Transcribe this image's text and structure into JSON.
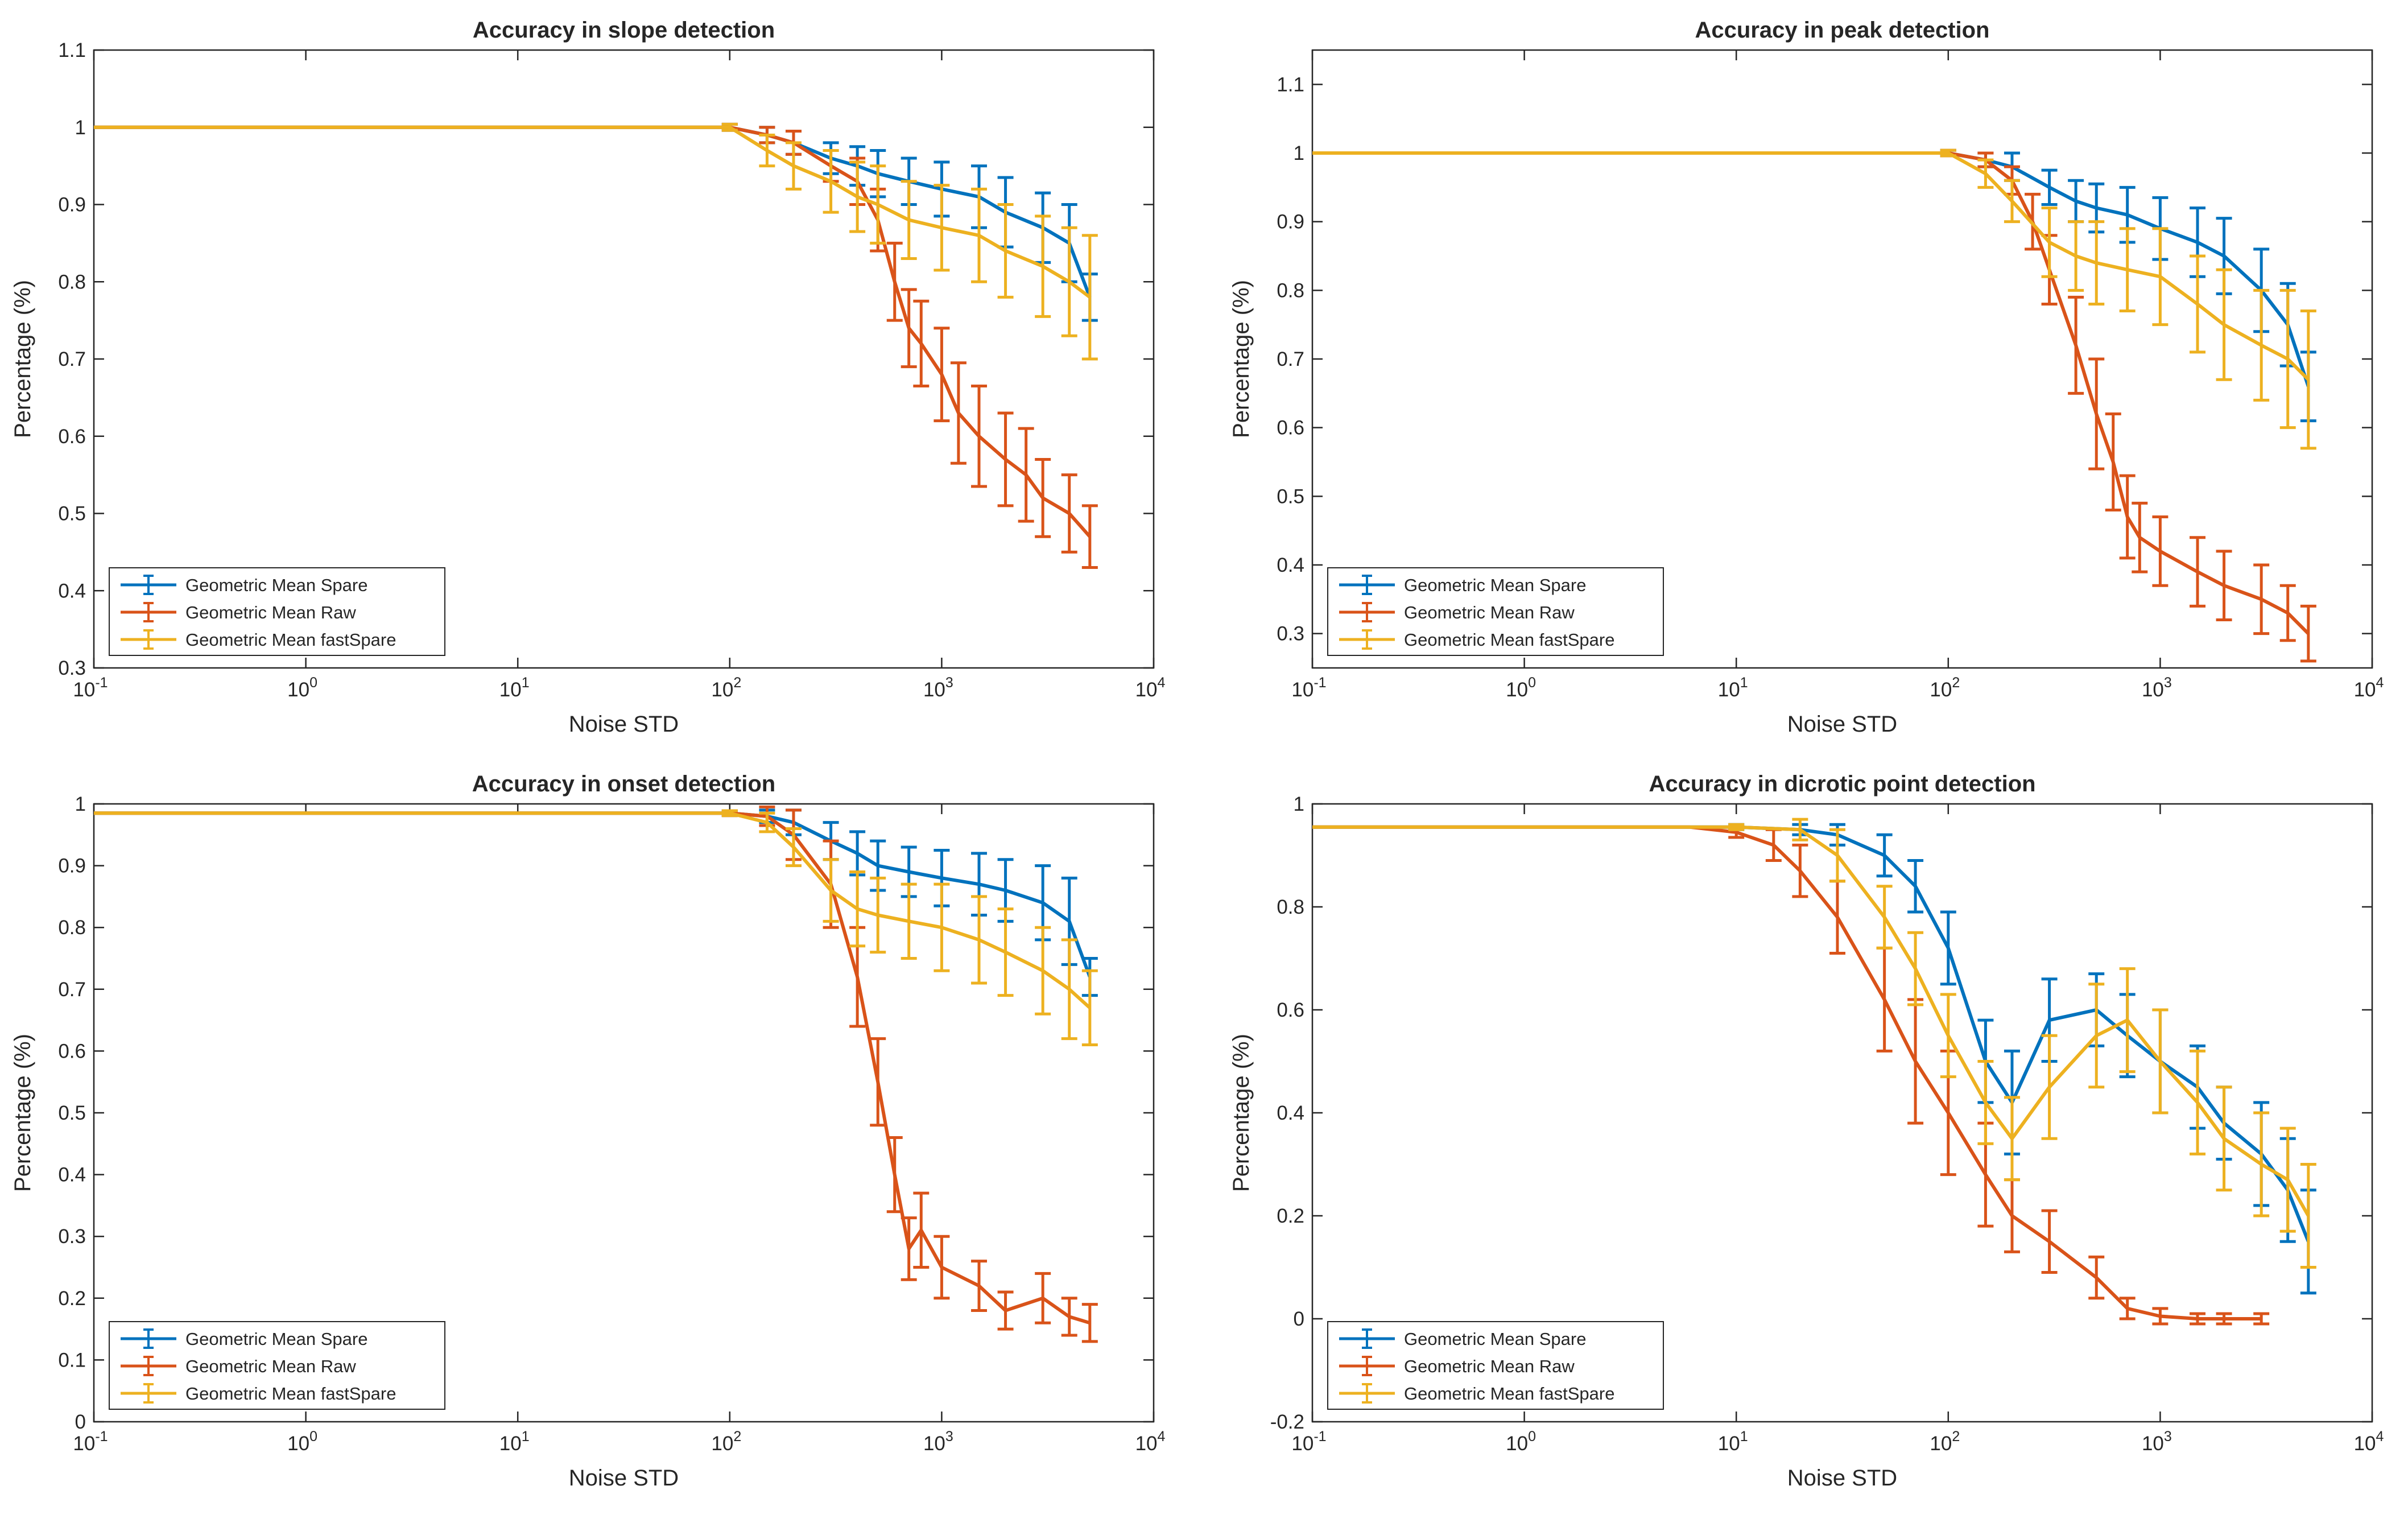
{
  "figure": {
    "xlabel": "Noise STD",
    "ylabel": "Percentage (%)",
    "series_colors": {
      "Spare": "#0072BD",
      "Raw": "#D95319",
      "fastSpare": "#EDB120"
    },
    "legend_entries": [
      "Geometric Mean Spare",
      "Geometric Mean Raw",
      "Geometric Mean fastSpare"
    ]
  },
  "chart_data": [
    {
      "type": "line",
      "title": "Accuracy in slope detection",
      "xlabel": "Noise STD",
      "ylabel": "Percentage (%)",
      "xscale": "log",
      "xlim": [
        0.1,
        10000
      ],
      "xticks": [
        {
          "base": "10",
          "exp": "-1"
        },
        {
          "base": "10",
          "exp": "0"
        },
        {
          "base": "10",
          "exp": "1"
        },
        {
          "base": "10",
          "exp": "2"
        },
        {
          "base": "10",
          "exp": "3"
        },
        {
          "base": "10",
          "exp": "4"
        }
      ],
      "ylim": [
        0.3,
        1.1
      ],
      "yticks": [
        "0.3",
        "0.4",
        "0.5",
        "0.6",
        "0.7",
        "0.8",
        "0.9",
        "1",
        "1.1"
      ],
      "legend_position": "bottom-left",
      "series": [
        {
          "name": "Geometric Mean Spare",
          "color": "#0072BD",
          "x": [
            0.1,
            60,
            100,
            150,
            200,
            300,
            400,
            500,
            700,
            1000,
            1500,
            2000,
            3000,
            4000,
            5000
          ],
          "y": [
            1.0,
            1.0,
            1.0,
            0.99,
            0.98,
            0.96,
            0.95,
            0.94,
            0.93,
            0.92,
            0.91,
            0.89,
            0.87,
            0.85,
            0.78
          ],
          "err": [
            0,
            0,
            0.004,
            0.01,
            0.015,
            0.02,
            0.025,
            0.03,
            0.03,
            0.035,
            0.04,
            0.045,
            0.045,
            0.05,
            0.03
          ]
        },
        {
          "name": "Geometric Mean Raw",
          "color": "#D95319",
          "x": [
            0.1,
            60,
            100,
            150,
            200,
            300,
            400,
            500,
            600,
            700,
            800,
            1000,
            1200,
            1500,
            2000,
            2500,
            3000,
            4000,
            5000
          ],
          "y": [
            1.0,
            1.0,
            1.0,
            0.99,
            0.98,
            0.95,
            0.93,
            0.88,
            0.8,
            0.74,
            0.72,
            0.68,
            0.63,
            0.6,
            0.57,
            0.55,
            0.52,
            0.5,
            0.47
          ],
          "err": [
            0,
            0,
            0.004,
            0.01,
            0.015,
            0.02,
            0.03,
            0.04,
            0.05,
            0.05,
            0.055,
            0.06,
            0.065,
            0.065,
            0.06,
            0.06,
            0.05,
            0.05,
            0.04
          ]
        },
        {
          "name": "Geometric Mean fastSpare",
          "color": "#EDB120",
          "x": [
            0.1,
            60,
            100,
            150,
            200,
            300,
            400,
            500,
            700,
            1000,
            1500,
            2000,
            3000,
            4000,
            5000
          ],
          "y": [
            1.0,
            1.0,
            1.0,
            0.97,
            0.95,
            0.93,
            0.91,
            0.9,
            0.88,
            0.87,
            0.86,
            0.84,
            0.82,
            0.8,
            0.78
          ],
          "err": [
            0,
            0,
            0.004,
            0.02,
            0.03,
            0.04,
            0.045,
            0.05,
            0.05,
            0.055,
            0.06,
            0.06,
            0.065,
            0.07,
            0.08
          ]
        }
      ]
    },
    {
      "type": "line",
      "title": "Accuracy in peak detection",
      "xlabel": "Noise STD",
      "ylabel": "Percentage (%)",
      "xscale": "log",
      "xlim": [
        0.1,
        10000
      ],
      "xticks": [
        {
          "base": "10",
          "exp": "-1"
        },
        {
          "base": "10",
          "exp": "0"
        },
        {
          "base": "10",
          "exp": "1"
        },
        {
          "base": "10",
          "exp": "2"
        },
        {
          "base": "10",
          "exp": "3"
        },
        {
          "base": "10",
          "exp": "4"
        }
      ],
      "ylim": [
        0.25,
        1.15
      ],
      "yticks": [
        "0.3",
        "0.4",
        "0.5",
        "0.6",
        "0.7",
        "0.8",
        "0.9",
        "1",
        "1.1"
      ],
      "legend_position": "bottom-left",
      "series": [
        {
          "name": "Geometric Mean Spare",
          "color": "#0072BD",
          "x": [
            0.1,
            60,
            100,
            150,
            200,
            300,
            400,
            500,
            700,
            1000,
            1500,
            2000,
            3000,
            4000,
            5000
          ],
          "y": [
            1.0,
            1.0,
            1.0,
            0.99,
            0.98,
            0.95,
            0.93,
            0.92,
            0.91,
            0.89,
            0.87,
            0.85,
            0.8,
            0.75,
            0.66
          ],
          "err": [
            0,
            0,
            0.004,
            0.01,
            0.02,
            0.025,
            0.03,
            0.035,
            0.04,
            0.045,
            0.05,
            0.055,
            0.06,
            0.06,
            0.05
          ]
        },
        {
          "name": "Geometric Mean Raw",
          "color": "#D95319",
          "x": [
            0.1,
            60,
            100,
            150,
            200,
            250,
            300,
            400,
            500,
            600,
            700,
            800,
            1000,
            1500,
            2000,
            3000,
            4000,
            5000
          ],
          "y": [
            1.0,
            1.0,
            1.0,
            0.99,
            0.96,
            0.9,
            0.83,
            0.72,
            0.62,
            0.55,
            0.47,
            0.44,
            0.42,
            0.39,
            0.37,
            0.35,
            0.33,
            0.3
          ],
          "err": [
            0,
            0,
            0.004,
            0.01,
            0.02,
            0.04,
            0.05,
            0.07,
            0.08,
            0.07,
            0.06,
            0.05,
            0.05,
            0.05,
            0.05,
            0.05,
            0.04,
            0.04
          ]
        },
        {
          "name": "Geometric Mean fastSpare",
          "color": "#EDB120",
          "x": [
            0.1,
            60,
            100,
            150,
            200,
            300,
            400,
            500,
            700,
            1000,
            1500,
            2000,
            3000,
            4000,
            5000
          ],
          "y": [
            1.0,
            1.0,
            1.0,
            0.97,
            0.93,
            0.87,
            0.85,
            0.84,
            0.83,
            0.82,
            0.78,
            0.75,
            0.72,
            0.7,
            0.67
          ],
          "err": [
            0,
            0,
            0.004,
            0.02,
            0.03,
            0.05,
            0.05,
            0.06,
            0.06,
            0.07,
            0.07,
            0.08,
            0.08,
            0.1,
            0.1
          ]
        }
      ]
    },
    {
      "type": "line",
      "title": "Accuracy in onset detection",
      "xlabel": "Noise STD",
      "ylabel": "Percentage (%)",
      "xscale": "log",
      "xlim": [
        0.1,
        10000
      ],
      "xticks": [
        {
          "base": "10",
          "exp": "-1"
        },
        {
          "base": "10",
          "exp": "0"
        },
        {
          "base": "10",
          "exp": "1"
        },
        {
          "base": "10",
          "exp": "2"
        },
        {
          "base": "10",
          "exp": "3"
        },
        {
          "base": "10",
          "exp": "4"
        }
      ],
      "ylim": [
        0,
        1
      ],
      "yticks": [
        "0",
        "0.1",
        "0.2",
        "0.3",
        "0.4",
        "0.5",
        "0.6",
        "0.7",
        "0.8",
        "0.9",
        "1"
      ],
      "legend_position": "bottom-left",
      "series": [
        {
          "name": "Geometric Mean Spare",
          "color": "#0072BD",
          "x": [
            0.1,
            60,
            100,
            150,
            200,
            300,
            400,
            500,
            700,
            1000,
            1500,
            2000,
            3000,
            4000,
            5000
          ],
          "y": [
            0.985,
            0.985,
            0.985,
            0.98,
            0.97,
            0.94,
            0.92,
            0.9,
            0.89,
            0.88,
            0.87,
            0.86,
            0.84,
            0.81,
            0.72
          ],
          "err": [
            0,
            0,
            0.004,
            0.01,
            0.02,
            0.03,
            0.035,
            0.04,
            0.04,
            0.045,
            0.05,
            0.05,
            0.06,
            0.07,
            0.03
          ]
        },
        {
          "name": "Geometric Mean Raw",
          "color": "#D95319",
          "x": [
            0.1,
            60,
            100,
            150,
            200,
            300,
            400,
            500,
            600,
            700,
            800,
            1000,
            1500,
            2000,
            3000,
            4000,
            5000
          ],
          "y": [
            0.985,
            0.985,
            0.985,
            0.98,
            0.95,
            0.87,
            0.72,
            0.55,
            0.4,
            0.28,
            0.31,
            0.25,
            0.22,
            0.18,
            0.2,
            0.17,
            0.16
          ],
          "err": [
            0,
            0,
            0.004,
            0.015,
            0.04,
            0.07,
            0.08,
            0.07,
            0.06,
            0.05,
            0.06,
            0.05,
            0.04,
            0.03,
            0.04,
            0.03,
            0.03
          ]
        },
        {
          "name": "Geometric Mean fastSpare",
          "color": "#EDB120",
          "x": [
            0.1,
            60,
            100,
            150,
            200,
            300,
            400,
            500,
            700,
            1000,
            1500,
            2000,
            3000,
            4000,
            5000
          ],
          "y": [
            0.985,
            0.985,
            0.985,
            0.97,
            0.93,
            0.86,
            0.83,
            0.82,
            0.81,
            0.8,
            0.78,
            0.76,
            0.73,
            0.7,
            0.67
          ],
          "err": [
            0,
            0,
            0.004,
            0.015,
            0.03,
            0.05,
            0.06,
            0.06,
            0.06,
            0.07,
            0.07,
            0.07,
            0.07,
            0.08,
            0.06
          ]
        }
      ]
    },
    {
      "type": "line",
      "title": "Accuracy in dicrotic point detection",
      "xlabel": "Noise STD",
      "ylabel": "Percentage (%)",
      "xscale": "log",
      "xlim": [
        0.1,
        10000
      ],
      "xticks": [
        {
          "base": "10",
          "exp": "-1"
        },
        {
          "base": "10",
          "exp": "0"
        },
        {
          "base": "10",
          "exp": "1"
        },
        {
          "base": "10",
          "exp": "2"
        },
        {
          "base": "10",
          "exp": "3"
        },
        {
          "base": "10",
          "exp": "4"
        }
      ],
      "ylim": [
        -0.2,
        1
      ],
      "yticks": [
        "-0.2",
        "0",
        "0.2",
        "0.4",
        "0.6",
        "0.8",
        "1"
      ],
      "legend_position": "bottom-left",
      "series": [
        {
          "name": "Geometric Mean Spare",
          "color": "#0072BD",
          "x": [
            0.1,
            6,
            10,
            20,
            30,
            50,
            70,
            100,
            150,
            200,
            300,
            500,
            700,
            1000,
            1500,
            2000,
            3000,
            4000,
            5000
          ],
          "y": [
            0.955,
            0.955,
            0.955,
            0.95,
            0.94,
            0.9,
            0.84,
            0.72,
            0.5,
            0.42,
            0.58,
            0.6,
            0.55,
            0.5,
            0.45,
            0.38,
            0.32,
            0.25,
            0.15
          ],
          "err": [
            0,
            0,
            0.005,
            0.01,
            0.02,
            0.04,
            0.05,
            0.07,
            0.08,
            0.1,
            0.08,
            0.07,
            0.08,
            0.1,
            0.08,
            0.07,
            0.1,
            0.1,
            0.1
          ]
        },
        {
          "name": "Geometric Mean Raw",
          "color": "#D95319",
          "x": [
            0.1,
            6,
            10,
            15,
            20,
            30,
            50,
            70,
            100,
            150,
            200,
            300,
            500,
            700,
            1000,
            1500,
            2000,
            3000
          ],
          "y": [
            0.955,
            0.955,
            0.945,
            0.92,
            0.87,
            0.78,
            0.62,
            0.5,
            0.4,
            0.28,
            0.2,
            0.15,
            0.08,
            0.02,
            0.005,
            0.0,
            0.0,
            0.0
          ],
          "err": [
            0,
            0,
            0.01,
            0.03,
            0.05,
            0.07,
            0.1,
            0.12,
            0.12,
            0.1,
            0.07,
            0.06,
            0.04,
            0.02,
            0.015,
            0.01,
            0.01,
            0.01
          ]
        },
        {
          "name": "Geometric Mean fastSpare",
          "color": "#EDB120",
          "x": [
            0.1,
            10,
            20,
            30,
            50,
            70,
            100,
            150,
            200,
            300,
            500,
            700,
            1000,
            1500,
            2000,
            3000,
            4000,
            5000
          ],
          "y": [
            0.955,
            0.955,
            0.95,
            0.9,
            0.78,
            0.68,
            0.55,
            0.42,
            0.35,
            0.45,
            0.55,
            0.58,
            0.5,
            0.42,
            0.35,
            0.3,
            0.27,
            0.2
          ],
          "err": [
            0,
            0.005,
            0.02,
            0.05,
            0.06,
            0.07,
            0.08,
            0.08,
            0.08,
            0.1,
            0.1,
            0.1,
            0.1,
            0.1,
            0.1,
            0.1,
            0.1,
            0.1
          ]
        }
      ]
    }
  ]
}
